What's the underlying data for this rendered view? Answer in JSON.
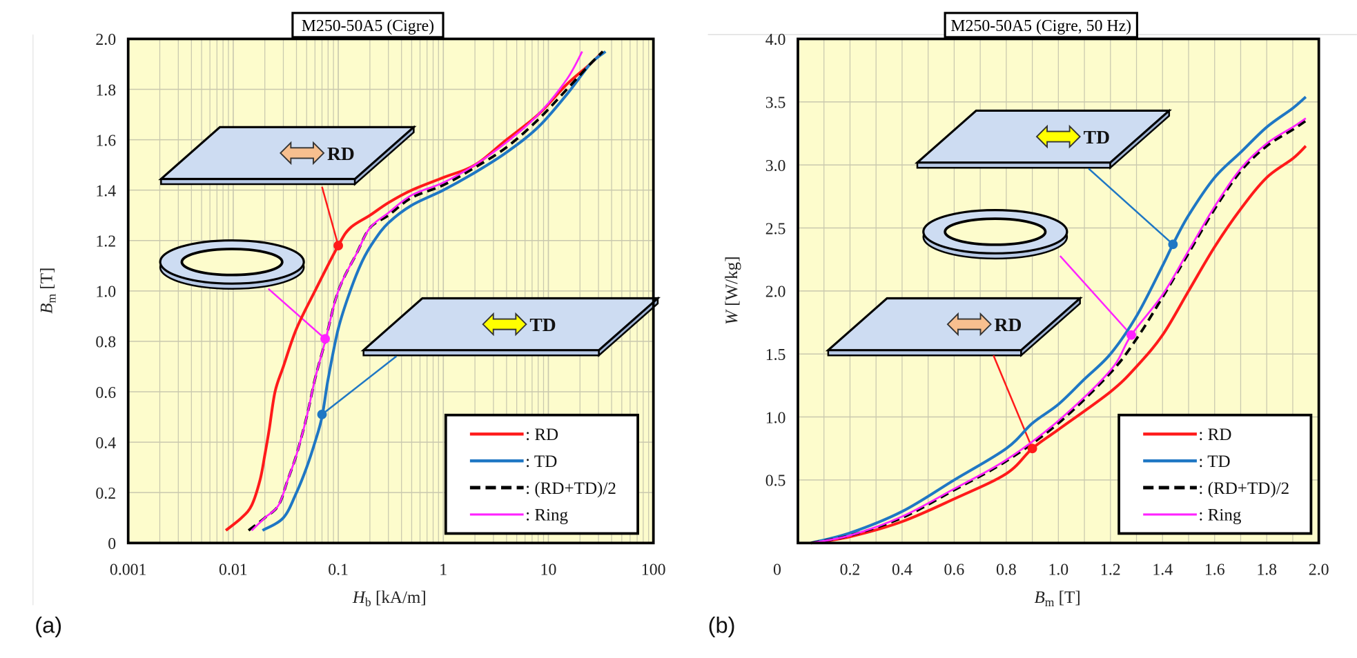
{
  "panels": [
    {
      "label": "(a)"
    },
    {
      "label": "(b)"
    }
  ],
  "colors": {
    "RD": "#ff1a1a",
    "TD": "#1f77c4",
    "avg": "#000000",
    "Ring": "#ff22ff",
    "plot_background": "#fdfccc",
    "grid": "#c9c8ae",
    "plate": "#cddcf2",
    "rd_arrow": "#f7bf8f",
    "td_arrow": "#ffff00"
  },
  "chart_data": [
    {
      "type": "line",
      "title": "M250-50A5  (Cigre)",
      "xlabel": {
        "var": "H",
        "sub": "b",
        "unit": " [kA/m]"
      },
      "ylabel": {
        "var": "B",
        "sub": "m",
        "unit": " [T]"
      },
      "xscale": "log",
      "xlim": [
        0.001,
        100
      ],
      "ylim": [
        0,
        2.0
      ],
      "xticks": [
        "0.001",
        "0.01",
        "0.1",
        "1",
        "10",
        "100"
      ],
      "yticks": [
        "0",
        "0.2",
        "0.4",
        "0.6",
        "0.8",
        "1.0",
        "1.2",
        "1.4",
        "1.6",
        "1.8",
        "2.0"
      ],
      "grid": true,
      "legend_placement": "bottom-right",
      "series": [
        {
          "name": ": RD",
          "key": "RD",
          "style": "solid",
          "x": [
            0.0085,
            0.012,
            0.015,
            0.018,
            0.02,
            0.022,
            0.025,
            0.03,
            0.04,
            0.06,
            0.1,
            0.13,
            0.2,
            0.3,
            0.5,
            1,
            2,
            4,
            8,
            15,
            25,
            33
          ],
          "y": [
            0.05,
            0.1,
            0.15,
            0.25,
            0.35,
            0.45,
            0.6,
            0.7,
            0.85,
            1.0,
            1.18,
            1.25,
            1.3,
            1.35,
            1.4,
            1.45,
            1.5,
            1.6,
            1.7,
            1.82,
            1.9,
            1.95
          ]
        },
        {
          "name": ": TD",
          "key": "TD",
          "style": "solid",
          "x": [
            0.019,
            0.03,
            0.04,
            0.05,
            0.06,
            0.07,
            0.08,
            0.1,
            0.13,
            0.17,
            0.22,
            0.3,
            0.5,
            1,
            2,
            4,
            8,
            15,
            25,
            35
          ],
          "y": [
            0.05,
            0.1,
            0.2,
            0.3,
            0.4,
            0.5,
            0.65,
            0.85,
            1.0,
            1.12,
            1.2,
            1.27,
            1.34,
            1.4,
            1.47,
            1.55,
            1.65,
            1.78,
            1.9,
            1.95
          ]
        },
        {
          "name": ": (RD+TD)/2",
          "key": "avg",
          "style": "dashed",
          "x": [
            0.014,
            0.02,
            0.027,
            0.033,
            0.04,
            0.05,
            0.06,
            0.075,
            0.1,
            0.15,
            0.2,
            0.3,
            0.5,
            1,
            2,
            4,
            8,
            15,
            25,
            33
          ],
          "y": [
            0.05,
            0.1,
            0.15,
            0.25,
            0.35,
            0.5,
            0.65,
            0.8,
            1.0,
            1.15,
            1.25,
            1.3,
            1.37,
            1.42,
            1.49,
            1.57,
            1.68,
            1.8,
            1.9,
            1.95
          ]
        },
        {
          "name": ": Ring",
          "key": "Ring",
          "style": "solid",
          "x": [
            0.015,
            0.02,
            0.027,
            0.033,
            0.04,
            0.05,
            0.06,
            0.075,
            0.1,
            0.15,
            0.2,
            0.3,
            0.5,
            1,
            2,
            4,
            8,
            15,
            21
          ],
          "y": [
            0.05,
            0.1,
            0.15,
            0.25,
            0.35,
            0.5,
            0.65,
            0.8,
            1.0,
            1.15,
            1.25,
            1.31,
            1.38,
            1.43,
            1.5,
            1.59,
            1.7,
            1.84,
            1.95
          ]
        }
      ],
      "annotations": [
        {
          "text": "RD",
          "sample": "RD plate",
          "marker": {
            "series": "RD",
            "x": 0.1,
            "y": 1.18
          }
        },
        {
          "text": "",
          "sample": "Ring",
          "marker": {
            "series": "Ring",
            "x": 0.075,
            "y": 0.81
          }
        },
        {
          "text": "TD",
          "sample": "TD plate",
          "marker": {
            "series": "TD",
            "x": 0.07,
            "y": 0.51
          }
        }
      ]
    },
    {
      "type": "line",
      "title": "M250-50A5  (Cigre, 50 Hz)",
      "xlabel": {
        "var": "B",
        "sub": "m",
        "unit": " [T]"
      },
      "ylabel": {
        "var": "W",
        "sub": "",
        "unit": " [W/kg]"
      },
      "xscale": "linear",
      "xlim": [
        0,
        2.0
      ],
      "ylim": [
        0,
        4.0
      ],
      "xticks": [
        "0",
        "0.2",
        "0.4",
        "0.6",
        "0.8",
        "1.0",
        "1.2",
        "1.4",
        "1.6",
        "1.8",
        "2.0"
      ],
      "yticks": [
        "0.5",
        "1.0",
        "1.5",
        "2.0",
        "2.5",
        "3.0",
        "3.5",
        "4.0"
      ],
      "grid": true,
      "legend_placement": "bottom-right",
      "series": [
        {
          "name": ": RD",
          "key": "RD",
          "style": "solid",
          "x": [
            0.05,
            0.2,
            0.4,
            0.6,
            0.8,
            0.9,
            1.0,
            1.2,
            1.3,
            1.4,
            1.5,
            1.6,
            1.7,
            1.8,
            1.9,
            1.95
          ],
          "y": [
            0,
            0.05,
            0.17,
            0.35,
            0.55,
            0.75,
            0.9,
            1.2,
            1.4,
            1.65,
            2.0,
            2.35,
            2.65,
            2.9,
            3.05,
            3.15
          ]
        },
        {
          "name": ": TD",
          "key": "TD",
          "style": "solid",
          "x": [
            0.05,
            0.2,
            0.4,
            0.6,
            0.8,
            0.9,
            1.0,
            1.1,
            1.2,
            1.3,
            1.4,
            1.44,
            1.5,
            1.6,
            1.7,
            1.8,
            1.9,
            1.95
          ],
          "y": [
            0,
            0.08,
            0.25,
            0.5,
            0.75,
            0.95,
            1.1,
            1.3,
            1.5,
            1.8,
            2.2,
            2.37,
            2.6,
            2.9,
            3.1,
            3.3,
            3.45,
            3.54
          ]
        },
        {
          "name": ": (RD+TD)/2",
          "key": "avg",
          "style": "dashed",
          "x": [
            0.05,
            0.2,
            0.4,
            0.6,
            0.8,
            1.0,
            1.2,
            1.3,
            1.4,
            1.5,
            1.6,
            1.7,
            1.8,
            1.9,
            1.95
          ],
          "y": [
            0,
            0.06,
            0.2,
            0.42,
            0.65,
            0.95,
            1.35,
            1.62,
            1.95,
            2.3,
            2.65,
            2.95,
            3.15,
            3.28,
            3.35
          ]
        },
        {
          "name": ": Ring",
          "key": "Ring",
          "style": "solid",
          "x": [
            0.05,
            0.2,
            0.4,
            0.6,
            0.8,
            1.0,
            1.2,
            1.28,
            1.4,
            1.5,
            1.6,
            1.7,
            1.8,
            1.9,
            1.95
          ],
          "y": [
            0,
            0.06,
            0.21,
            0.43,
            0.66,
            0.97,
            1.37,
            1.65,
            1.97,
            2.32,
            2.67,
            2.97,
            3.17,
            3.3,
            3.37
          ]
        }
      ],
      "annotations": [
        {
          "text": "TD",
          "sample": "TD plate",
          "marker": {
            "series": "TD",
            "x": 1.44,
            "y": 2.37
          }
        },
        {
          "text": "",
          "sample": "Ring",
          "marker": {
            "series": "Ring",
            "x": 1.28,
            "y": 1.65
          }
        },
        {
          "text": "RD",
          "sample": "RD plate",
          "marker": {
            "series": "RD",
            "x": 0.9,
            "y": 0.75
          }
        }
      ]
    }
  ]
}
